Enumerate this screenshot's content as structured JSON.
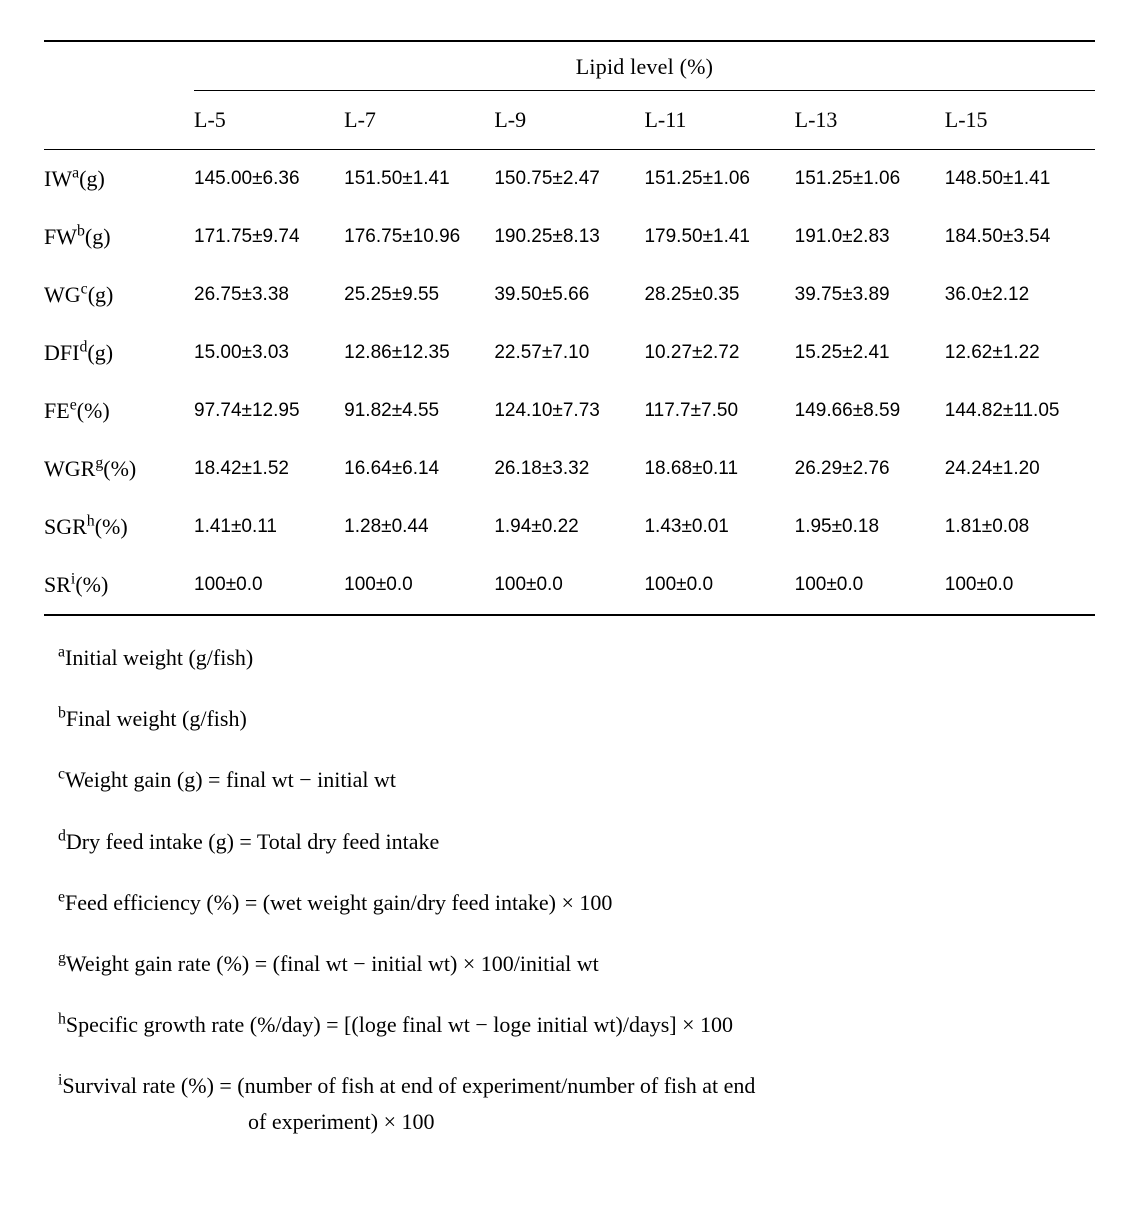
{
  "table": {
    "spanner": "Lipid level (%)",
    "columns": [
      "L-5",
      "L-7",
      "L-9",
      "L-11",
      "L-13",
      "L-15"
    ],
    "rows": [
      {
        "label": "IW",
        "sup": "a",
        "unit": "(g)",
        "values": [
          "145.00±6.36",
          "151.50±1.41",
          "150.75±2.47",
          "151.25±1.06",
          "151.25±1.06",
          "148.50±1.41"
        ]
      },
      {
        "label": "FW",
        "sup": "b",
        "unit": "(g)",
        "values": [
          "171.75±9.74",
          "176.75±10.96",
          "190.25±8.13",
          "179.50±1.41",
          "191.0±2.83",
          "184.50±3.54"
        ]
      },
      {
        "label": "WG",
        "sup": "c",
        "unit": "(g)",
        "values": [
          "26.75±3.38",
          "25.25±9.55",
          "39.50±5.66",
          "28.25±0.35",
          "39.75±3.89",
          "36.0±2.12"
        ]
      },
      {
        "label": "DFI",
        "sup": "d",
        "unit": "(g)",
        "values": [
          "15.00±3.03",
          "12.86±12.35",
          "22.57±7.10",
          "10.27±2.72",
          "15.25±2.41",
          "12.62±1.22"
        ]
      },
      {
        "label": "FE",
        "sup": "e",
        "unit": "(%)",
        "values": [
          "97.74±12.95",
          "91.82±4.55",
          "124.10±7.73",
          "117.7±7.50",
          "149.66±8.59",
          "144.82±11.05"
        ]
      },
      {
        "label": "WGR",
        "sup": "g",
        "unit": "(%)",
        "values": [
          "18.42±1.52",
          "16.64±6.14",
          "26.18±3.32",
          "18.68±0.11",
          "26.29±2.76",
          "24.24±1.20"
        ]
      },
      {
        "label": "SGR",
        "sup": "h",
        "unit": "(%)",
        "values": [
          "1.41±0.11",
          "1.28±0.44",
          "1.94±0.22",
          "1.43±0.01",
          "1.95±0.18",
          "1.81±0.08"
        ]
      },
      {
        "label": "SR",
        "sup": "i",
        "unit": "(%)",
        "values": [
          "100±0.0",
          "100±0.0",
          "100±0.0",
          "100±0.0",
          "100±0.0",
          "100±0.0"
        ]
      }
    ]
  },
  "footnotes": [
    {
      "sup": "a",
      "text": "Initial weight (g/fish)"
    },
    {
      "sup": "b",
      "text": "Final weight (g/fish)"
    },
    {
      "sup": "c",
      "text": "Weight gain (g) = final wt − initial wt"
    },
    {
      "sup": "d",
      "text": "Dry feed intake (g) = Total dry feed intake"
    },
    {
      "sup": "e",
      "text": "Feed efficiency (%) = (wet weight gain/dry feed intake) × 100"
    },
    {
      "sup": "g",
      "text": "Weight gain rate (%) = (final wt − initial wt) × 100/initial wt"
    },
    {
      "sup": "h",
      "text": "Specific growth rate (%/day) = [(loge final wt − loge initial wt)/days] × 100"
    },
    {
      "sup": "i",
      "text": "Survival rate (%) = (number of fish at end of experiment/number of fish at end",
      "cont": "of experiment) × 100"
    }
  ]
}
